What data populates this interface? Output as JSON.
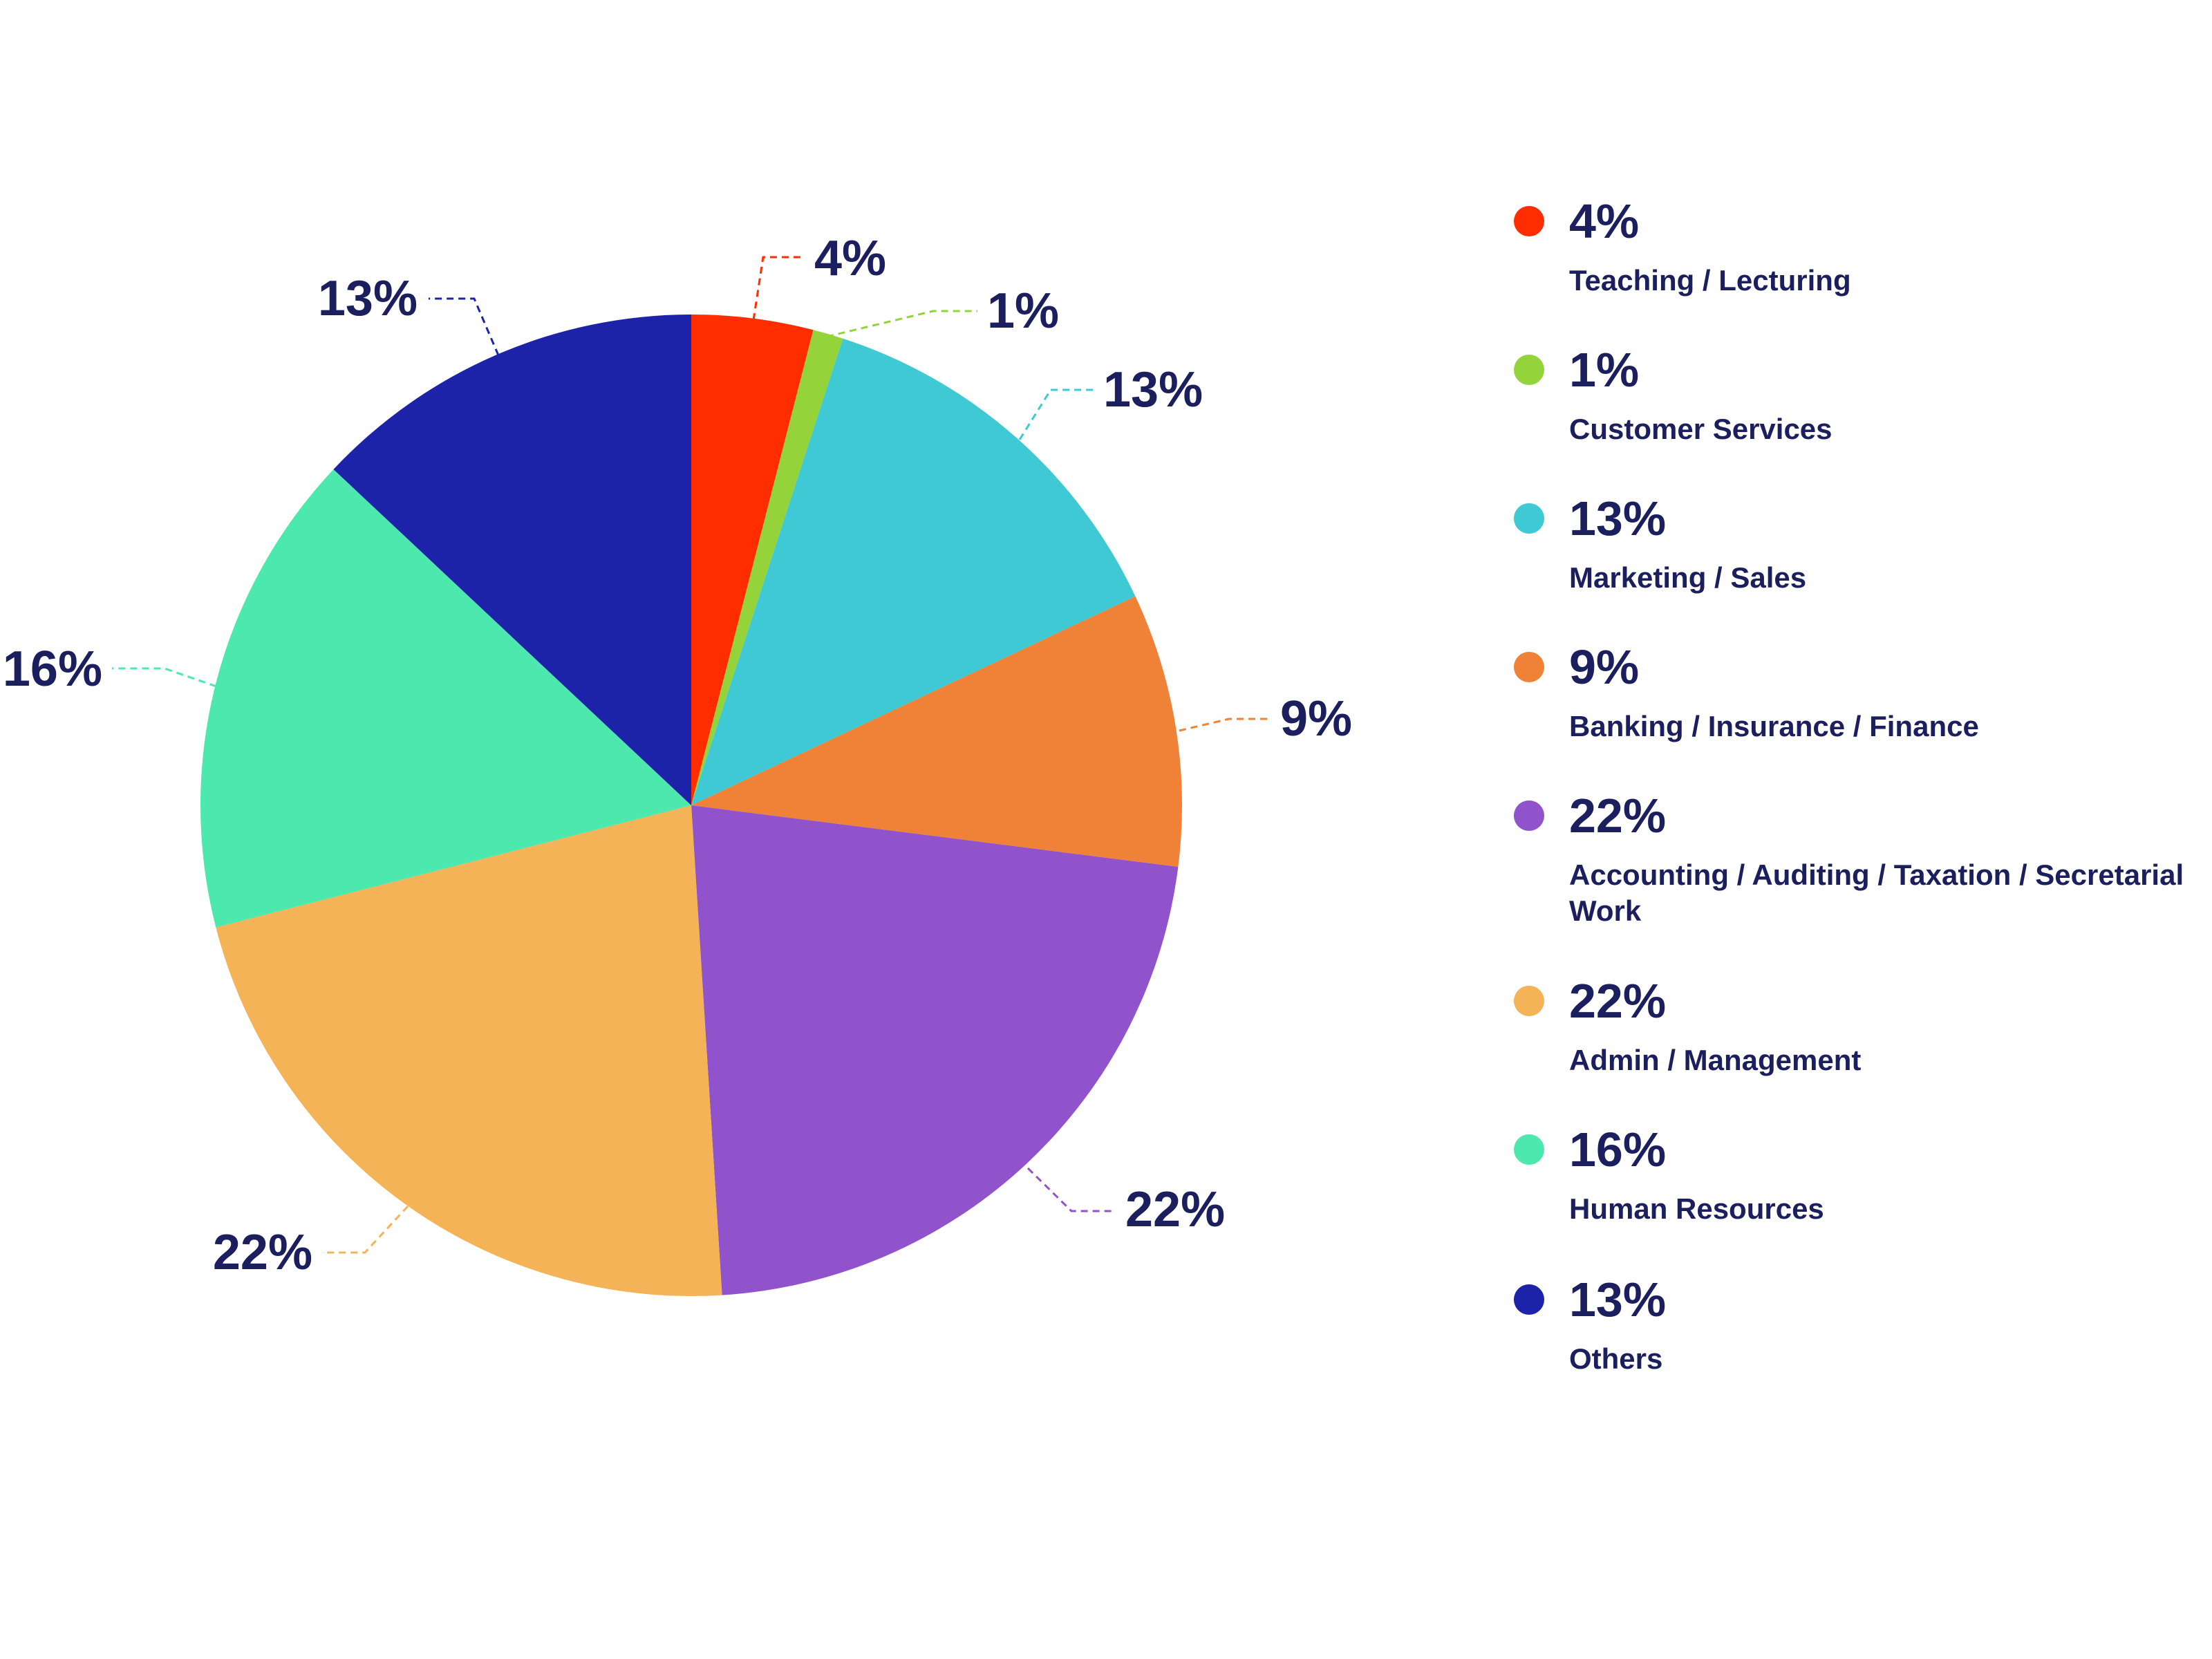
{
  "chart_data": {
    "type": "pie",
    "title": "",
    "categories": [
      "Teaching / Lecturing",
      "Customer Services",
      "Marketing / Sales",
      "Banking / Insurance / Finance",
      "Accounting / Auditing / Taxation / Secretarial Work",
      "Admin / Management",
      "Human Resources",
      "Others"
    ],
    "values": [
      4,
      1,
      13,
      9,
      22,
      22,
      16,
      13
    ],
    "labels": [
      "4%",
      "1%",
      "13%",
      "9%",
      "22%",
      "22%",
      "16%",
      "13%"
    ],
    "colors": [
      "#ff2d00",
      "#94d43a",
      "#3ec9d4",
      "#ef8236",
      "#9153cc",
      "#f4b357",
      "#4ce8ae",
      "#1c23a8"
    ],
    "start_angle_deg": 0,
    "direction": "clockwise",
    "leader_lines": "dashed",
    "legend_position": "right"
  },
  "legend": {
    "items": [
      {
        "value": "4%",
        "label": "Teaching / Lecturing",
        "color": "#ff2d00"
      },
      {
        "value": "1%",
        "label": "Customer Services",
        "color": "#94d43a"
      },
      {
        "value": "13%",
        "label": "Marketing / Sales",
        "color": "#3ec9d4"
      },
      {
        "value": "9%",
        "label": "Banking / Insurance / Finance",
        "color": "#ef8236"
      },
      {
        "value": "22%",
        "label": "Accounting / Auditing / Taxation / Secretarial Work",
        "color": "#9153cc"
      },
      {
        "value": "22%",
        "label": "Admin / Management",
        "color": "#f4b357"
      },
      {
        "value": "16%",
        "label": "Human Resources",
        "color": "#4ce8ae"
      },
      {
        "value": "13%",
        "label": "Others",
        "color": "#1c23a8"
      }
    ]
  }
}
